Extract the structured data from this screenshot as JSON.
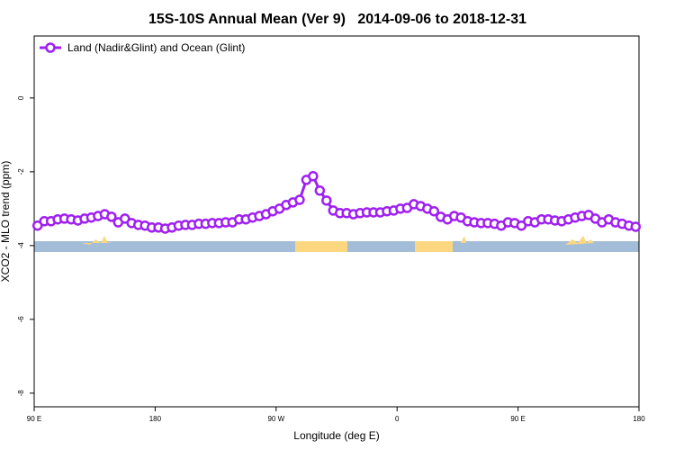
{
  "chart_data": {
    "type": "line",
    "title": "15S-10S Annual Mean (Ver 9)   2014-09-06 to 2018-12-31",
    "x_label": "Longitude (deg E)",
    "y_label": "XCO2 - MLO trend (ppm)",
    "xlim": [
      90,
      540
    ],
    "ylim": [
      -8.37,
      1.68
    ],
    "xticks": [
      {
        "value": 90,
        "label": "90 E"
      },
      {
        "value": 180,
        "label": "180"
      },
      {
        "value": 270,
        "label": "90 W"
      },
      {
        "value": 360,
        "label": "0"
      },
      {
        "value": 450,
        "label": "90 E"
      },
      {
        "value": 540,
        "label": "180"
      }
    ],
    "yticks": [
      0,
      -2,
      -4,
      -6,
      -8
    ],
    "legend_position": "top-left",
    "x": [
      92.5,
      97.5,
      102.5,
      107.5,
      112.5,
      117.5,
      122.5,
      127.5,
      132.5,
      137.5,
      142.5,
      147.5,
      152.5,
      157.5,
      162.5,
      167.5,
      172.5,
      177.5,
      182.5,
      187.5,
      192.5,
      197.5,
      202.5,
      207.5,
      212.5,
      217.5,
      222.5,
      227.5,
      232.5,
      237.5,
      242.5,
      247.5,
      252.5,
      257.5,
      262.5,
      267.5,
      272.5,
      277.5,
      282.5,
      287.5,
      292.5,
      297.5,
      302.5,
      307.5,
      312.5,
      317.5,
      322.5,
      327.5,
      332.5,
      337.5,
      342.5,
      347.5,
      352.5,
      357.5,
      362.5,
      367.5,
      372.5,
      377.5,
      382.5,
      387.5,
      392.5,
      397.5,
      402.5,
      407.5,
      412.5,
      417.5,
      422.5,
      427.5,
      432.5,
      437.5,
      442.5,
      447.5,
      452.5,
      457.5,
      462.5,
      467.5,
      472.5,
      477.5,
      482.5,
      487.5,
      492.5,
      497.5,
      502.5,
      507.5,
      512.5,
      517.5,
      522.5,
      527.5,
      532.5,
      537.5
    ],
    "series": [
      {
        "name": "Land (Nadir&Glint) and Ocean (Glint)",
        "color": "#a020f0",
        "values": [
          -3.46,
          -3.34,
          -3.34,
          -3.29,
          -3.27,
          -3.29,
          -3.32,
          -3.27,
          -3.24,
          -3.2,
          -3.15,
          -3.22,
          -3.37,
          -3.27,
          -3.39,
          -3.44,
          -3.46,
          -3.51,
          -3.51,
          -3.54,
          -3.51,
          -3.46,
          -3.44,
          -3.44,
          -3.41,
          -3.41,
          -3.39,
          -3.39,
          -3.37,
          -3.37,
          -3.29,
          -3.29,
          -3.24,
          -3.2,
          -3.15,
          -3.07,
          -3.0,
          -2.9,
          -2.83,
          -2.76,
          -2.22,
          -2.12,
          -2.51,
          -2.78,
          -3.05,
          -3.12,
          -3.12,
          -3.15,
          -3.12,
          -3.1,
          -3.1,
          -3.1,
          -3.07,
          -3.05,
          -3.0,
          -2.98,
          -2.88,
          -2.93,
          -3.0,
          -3.07,
          -3.22,
          -3.29,
          -3.2,
          -3.24,
          -3.34,
          -3.37,
          -3.39,
          -3.39,
          -3.41,
          -3.46,
          -3.37,
          -3.39,
          -3.46,
          -3.34,
          -3.37,
          -3.29,
          -3.29,
          -3.32,
          -3.34,
          -3.29,
          -3.24,
          -3.2,
          -3.17,
          -3.27,
          -3.37,
          -3.29,
          -3.37,
          -3.41,
          -3.46,
          -3.49
        ]
      }
    ]
  }
}
